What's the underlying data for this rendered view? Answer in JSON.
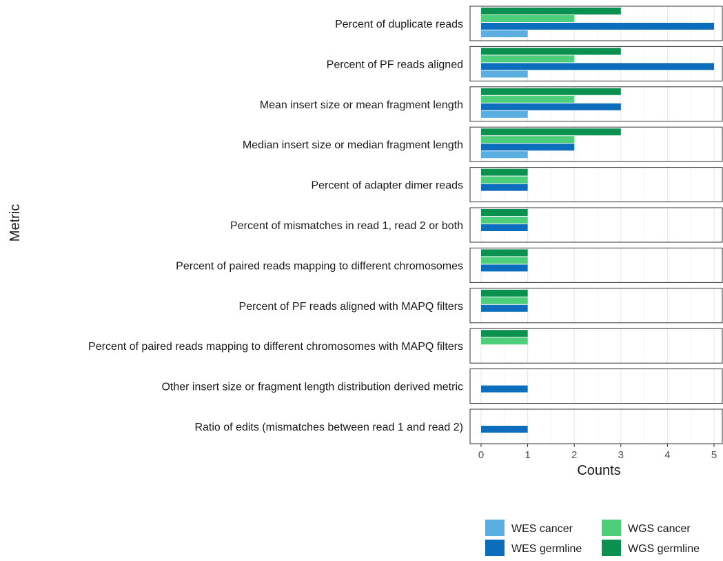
{
  "chart_data": {
    "type": "bar",
    "orientation": "horizontal",
    "faceted": true,
    "xlabel": "Counts",
    "ylabel": "Metric",
    "xlim": [
      0,
      5
    ],
    "xticks": [
      0,
      1,
      2,
      3,
      4,
      5
    ],
    "grid": true,
    "legend_position": "bottom-right",
    "categories": [
      "Percent of duplicate reads",
      "Percent of PF reads aligned",
      "Mean insert size or mean fragment length",
      "Median insert size or median fragment length",
      "Percent of adapter dimer reads",
      "Percent of mismatches in read 1, read 2 or both",
      "Percent of paired reads mapping to different chromosomes",
      "Percent of PF reads aligned with MAPQ filters",
      "Percent of paired reads mapping to different chromosomes with MAPQ filters",
      "Other insert size or fragment length distribution derived metric",
      "Ratio of edits (mismatches between read 1 and read 2)"
    ],
    "series": [
      {
        "name": "WGS germline",
        "color": "#0a9150",
        "values": [
          3,
          3,
          3,
          3,
          1,
          1,
          1,
          1,
          1,
          0,
          0
        ]
      },
      {
        "name": "WGS cancer",
        "color": "#4cce7a",
        "values": [
          2,
          2,
          2,
          2,
          1,
          1,
          1,
          1,
          1,
          0,
          0
        ]
      },
      {
        "name": "WES germline",
        "color": "#0b6dbb",
        "values": [
          5,
          5,
          3,
          2,
          1,
          1,
          1,
          1,
          0,
          1,
          1
        ]
      },
      {
        "name": "WES cancer",
        "color": "#5aaee0",
        "values": [
          1,
          1,
          1,
          1,
          0,
          0,
          0,
          0,
          0,
          0,
          0
        ]
      }
    ],
    "legend_order": [
      "WES cancer",
      "WGS cancer",
      "WES germline",
      "WGS germline"
    ]
  }
}
